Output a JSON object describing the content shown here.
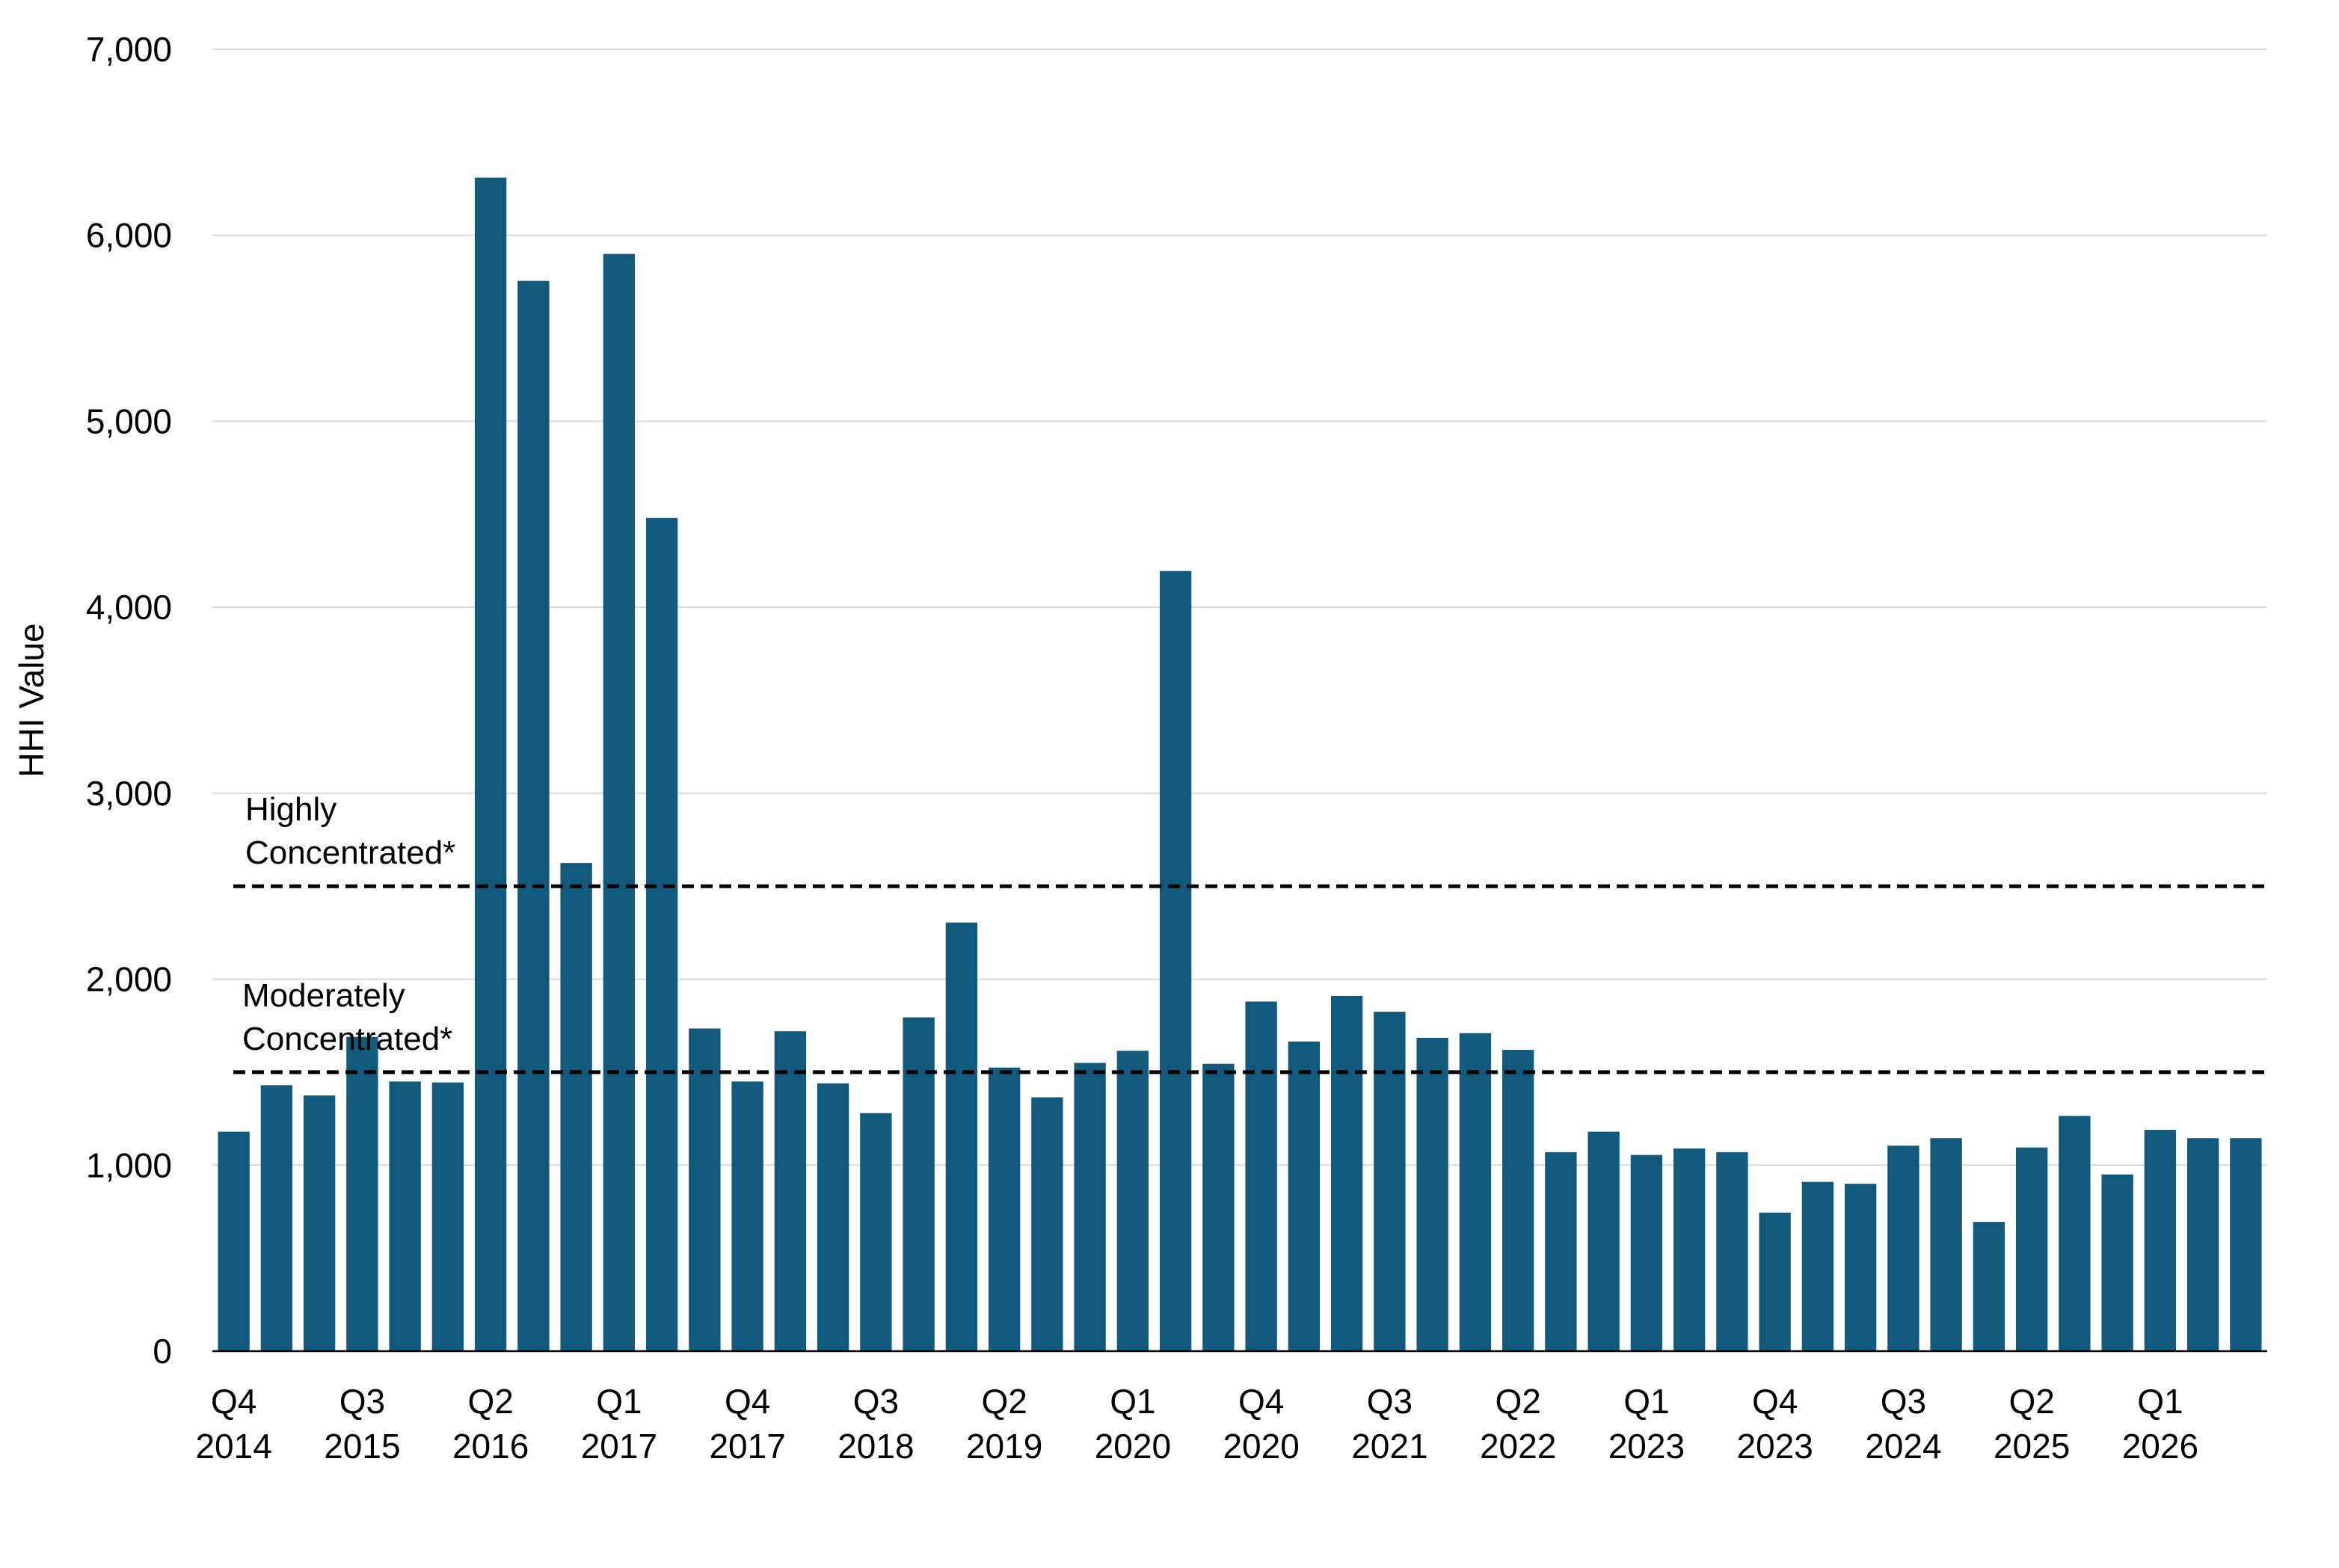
{
  "chart_data": {
    "type": "bar",
    "ylabel": "HHI Value",
    "ylim": [
      0,
      7000
    ],
    "yticks": [
      0,
      1000,
      2000,
      3000,
      4000,
      5000,
      6000,
      7000
    ],
    "ytick_labels": [
      "0",
      "1,000",
      "2,000",
      "3,000",
      "4,000",
      "5,000",
      "6,000",
      "7,000"
    ],
    "grid": true,
    "bar_color": "#115a7d",
    "categories": [
      "Q4 2014",
      "Q1 2015",
      "Q2 2015",
      "Q3 2015",
      "Q4 2015",
      "Q1 2016",
      "Q2 2016",
      "Q3 2016",
      "Q4 2016",
      "Q1 2017",
      "Q2 2017",
      "Q3 2017",
      "Q4 2017",
      "Q1 2018",
      "Q2 2018",
      "Q3 2018",
      "Q4 2018",
      "Q1 2019",
      "Q2 2019",
      "Q3 2019",
      "Q4 2019",
      "Q1 2020",
      "Q2 2020",
      "Q3 2020",
      "Q4 2020",
      "Q1 2021",
      "Q2 2021",
      "Q3 2021",
      "Q4 2021",
      "Q1 2022",
      "Q2 2022",
      "Q3 2022",
      "Q4 2022",
      "Q1 2023",
      "Q2 2023",
      "Q3 2023",
      "Q4 2023",
      "Q1 2024",
      "Q2 2024",
      "Q3 2024",
      "Q4 2024",
      "Q1 2025",
      "Q2 2025",
      "Q3 2025",
      "Q4 2025",
      "Q1 2026",
      "Q2 2026",
      "Q3 2026"
    ],
    "values": [
      1180,
      1430,
      1375,
      1690,
      1450,
      1445,
      6310,
      5755,
      2625,
      5900,
      4480,
      1735,
      1450,
      1720,
      1440,
      1280,
      1795,
      2305,
      1525,
      1365,
      1550,
      1615,
      4195,
      1545,
      1880,
      1665,
      1910,
      1825,
      1685,
      1710,
      1620,
      1070,
      1180,
      1055,
      1090,
      1070,
      745,
      910,
      900,
      1105,
      1145,
      695,
      1095,
      1265,
      950,
      1190,
      1145,
      1145
    ],
    "x_tick_labels": [
      {
        "index": 0,
        "quarter": "Q4",
        "year": "2014"
      },
      {
        "index": 3,
        "quarter": "Q3",
        "year": "2015"
      },
      {
        "index": 6,
        "quarter": "Q2",
        "year": "2016"
      },
      {
        "index": 9,
        "quarter": "Q1",
        "year": "2017"
      },
      {
        "index": 12,
        "quarter": "Q4",
        "year": "2017"
      },
      {
        "index": 15,
        "quarter": "Q3",
        "year": "2018"
      },
      {
        "index": 18,
        "quarter": "Q2",
        "year": "2019"
      },
      {
        "index": 21,
        "quarter": "Q1",
        "year": "2020"
      },
      {
        "index": 24,
        "quarter": "Q4",
        "year": "2020"
      },
      {
        "index": 27,
        "quarter": "Q3",
        "year": "2021"
      },
      {
        "index": 30,
        "quarter": "Q2",
        "year": "2022"
      },
      {
        "index": 33,
        "quarter": "Q1",
        "year": "2023"
      },
      {
        "index": 36,
        "quarter": "Q4",
        "year": "2023"
      },
      {
        "index": 39,
        "quarter": "Q3",
        "year": "2024"
      },
      {
        "index": 42,
        "quarter": "Q2",
        "year": "2025"
      },
      {
        "index": 45,
        "quarter": "Q1",
        "year": "2026"
      }
    ],
    "reference_lines": [
      {
        "value": 2500,
        "label_lines": [
          "Highly",
          "Concentrated*"
        ]
      },
      {
        "value": 1500,
        "label_lines": [
          "Moderately",
          "Concentrated*"
        ]
      }
    ]
  }
}
